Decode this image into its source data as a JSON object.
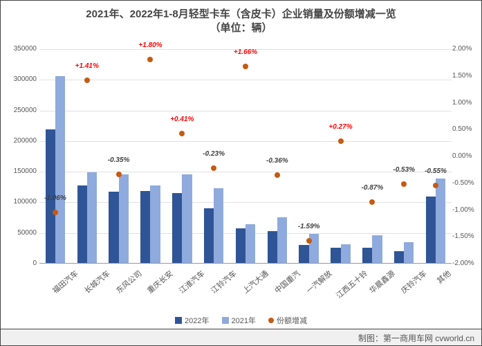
{
  "chart": {
    "title_line1": "2021年、2022年1-8月轻型卡车（含皮卡）企业销量及份额增减一览",
    "title_line2": "（单位：辆）",
    "title_fontsize": 15,
    "background_color": "#ffffff",
    "grid_color": "#e0e0e0",
    "plot_border_color": "#999999",
    "y_left": {
      "min": 0,
      "max": 350000,
      "step": 50000
    },
    "y_right": {
      "min": -2.0,
      "max": 2.0,
      "step": 0.5,
      "suffix": "%",
      "decimals": 2
    },
    "categories": [
      "福田汽车",
      "长城汽车",
      "东风公司",
      "重庆长安",
      "江淮汽车",
      "江铃汽车",
      "上汽大通",
      "中国重汽",
      "一汽解放",
      "江西五十铃",
      "华晨鑫源",
      "庆铃汽车",
      "其他"
    ],
    "series": [
      {
        "name": "2022年",
        "type": "bar",
        "color": "#2f5597",
        "values": [
          218000,
          126000,
          116000,
          117000,
          114000,
          89000,
          57000,
          52000,
          29000,
          25000,
          25000,
          19000,
          108000
        ]
      },
      {
        "name": "2021年",
        "type": "bar",
        "color": "#8faadc",
        "values": [
          305000,
          148000,
          145000,
          127000,
          144000,
          122000,
          63000,
          75000,
          48000,
          31000,
          45000,
          34000,
          138000
        ]
      },
      {
        "name": "份额增减",
        "type": "scatter",
        "color": "#c55a11",
        "values": [
          -1.06,
          1.41,
          -0.35,
          1.8,
          0.41,
          -0.23,
          1.66,
          -0.36,
          -1.59,
          0.27,
          -0.87,
          -0.53,
          -0.55
        ],
        "labels": [
          "-1.06%",
          "+1.41%",
          "-0.35%",
          "+1.80%",
          "+0.41%",
          "-0.23%",
          "+1.66%",
          "-0.36%",
          "-1.59%",
          "+0.27%",
          "-0.87%",
          "-0.53%",
          "-0.55%"
        ],
        "positive_color": "#ff0000",
        "negative_color": "#404040",
        "label_fontsize": 10,
        "marker_size": 8
      }
    ],
    "bar_group_width": 0.62,
    "x_label_fontsize": 11,
    "x_label_rotation": -40,
    "legend_items": [
      "2022年",
      "2021年",
      "份额增减"
    ]
  },
  "footer": {
    "text": "制图：第一商用车网 cvworld.cn",
    "background": "#f0f0f0",
    "color": "#555555",
    "fontsize": 12
  }
}
